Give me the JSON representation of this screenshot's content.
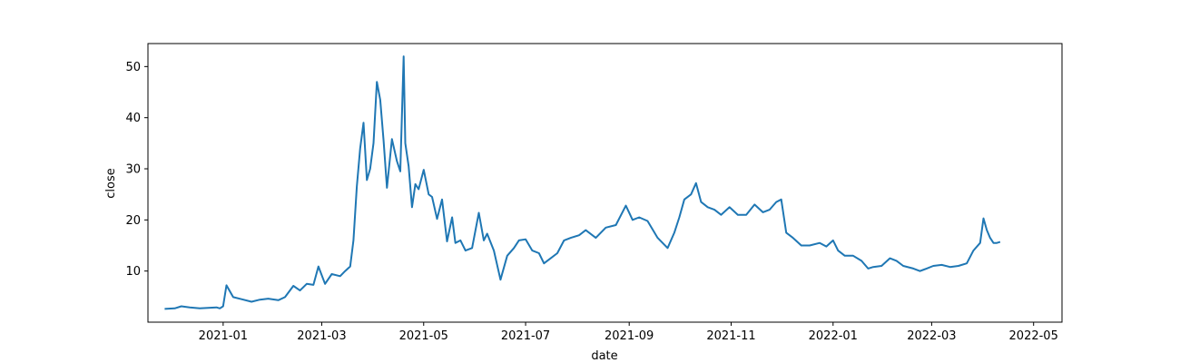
{
  "chart_data": {
    "type": "line",
    "title": "",
    "xlabel": "date",
    "ylabel": "close",
    "x_ticks": [
      "2021-01",
      "2021-03",
      "2021-05",
      "2021-07",
      "2021-09",
      "2021-11",
      "2022-01",
      "2022-03",
      "2022-05"
    ],
    "y_ticks": [
      10,
      20,
      30,
      40,
      50
    ],
    "xlim": [
      "2020-11-17",
      "2022-05-18"
    ],
    "ylim": [
      0,
      54.5
    ],
    "grid": false,
    "line_color": "#1f77b4",
    "series": [
      {
        "x": [
          "2020-11-27",
          "2020-12-03",
          "2020-12-07",
          "2020-12-12",
          "2020-12-18",
          "2020-12-23",
          "2020-12-28",
          "2020-12-30",
          "2021-01-01",
          "2021-01-03",
          "2021-01-07",
          "2021-01-12",
          "2021-01-18",
          "2021-01-23",
          "2021-01-28",
          "2021-02-03",
          "2021-02-07",
          "2021-02-12",
          "2021-02-16",
          "2021-02-20",
          "2021-02-24",
          "2021-02-27",
          "2021-03-03",
          "2021-03-07",
          "2021-03-12",
          "2021-03-15",
          "2021-03-18",
          "2021-03-20",
          "2021-03-22",
          "2021-03-24",
          "2021-03-26",
          "2021-03-28",
          "2021-03-30",
          "2021-04-01",
          "2021-04-03",
          "2021-04-05",
          "2021-04-07",
          "2021-04-09",
          "2021-04-12",
          "2021-04-15",
          "2021-04-17",
          "2021-04-19",
          "2021-04-20",
          "2021-04-22",
          "2021-04-24",
          "2021-04-26",
          "2021-04-28",
          "2021-05-01",
          "2021-05-04",
          "2021-05-06",
          "2021-05-09",
          "2021-05-12",
          "2021-05-15",
          "2021-05-18",
          "2021-05-20",
          "2021-05-23",
          "2021-05-26",
          "2021-05-30",
          "2021-06-03",
          "2021-06-06",
          "2021-06-08",
          "2021-06-12",
          "2021-06-16",
          "2021-06-20",
          "2021-06-24",
          "2021-06-27",
          "2021-07-01",
          "2021-07-05",
          "2021-07-09",
          "2021-07-12",
          "2021-07-16",
          "2021-07-20",
          "2021-07-24",
          "2021-07-28",
          "2021-08-02",
          "2021-08-06",
          "2021-08-12",
          "2021-08-18",
          "2021-08-24",
          "2021-08-30",
          "2021-09-03",
          "2021-09-07",
          "2021-09-12",
          "2021-09-18",
          "2021-09-24",
          "2021-09-28",
          "2021-10-01",
          "2021-10-04",
          "2021-10-08",
          "2021-10-11",
          "2021-10-14",
          "2021-10-18",
          "2021-10-22",
          "2021-10-26",
          "2021-10-31",
          "2021-11-05",
          "2021-11-10",
          "2021-11-15",
          "2021-11-20",
          "2021-11-24",
          "2021-11-28",
          "2021-12-01",
          "2021-12-04",
          "2021-12-08",
          "2021-12-13",
          "2021-12-18",
          "2021-12-24",
          "2021-12-28",
          "2022-01-01",
          "2022-01-04",
          "2022-01-08",
          "2022-01-13",
          "2022-01-18",
          "2022-01-22",
          "2022-01-25",
          "2022-01-30",
          "2022-02-04",
          "2022-02-08",
          "2022-02-12",
          "2022-02-18",
          "2022-02-22",
          "2022-02-26",
          "2022-03-02",
          "2022-03-07",
          "2022-03-12",
          "2022-03-17",
          "2022-03-22",
          "2022-03-26",
          "2022-03-30",
          "2022-04-01",
          "2022-04-03",
          "2022-04-05",
          "2022-04-07",
          "2022-04-09",
          "2022-04-11"
        ],
        "values": [
          2.6,
          2.7,
          3.1,
          2.9,
          2.7,
          2.8,
          2.9,
          2.7,
          3.1,
          7.2,
          4.9,
          4.5,
          4.0,
          4.4,
          4.6,
          4.3,
          4.9,
          7.1,
          6.2,
          7.5,
          7.3,
          10.9,
          7.5,
          9.4,
          9.0,
          10.0,
          10.9,
          16.0,
          26.5,
          34.0,
          39.0,
          27.8,
          30.0,
          35.0,
          47.0,
          43.5,
          35.5,
          26.3,
          35.8,
          31.5,
          29.5,
          52.0,
          35.0,
          30.5,
          22.5,
          27.0,
          26.0,
          29.8,
          25.0,
          24.5,
          20.2,
          24.0,
          15.8,
          20.5,
          15.5,
          16.0,
          14.0,
          14.5,
          21.4,
          16.0,
          17.3,
          14.0,
          8.3,
          13.0,
          14.5,
          16.0,
          16.2,
          14.0,
          13.5,
          11.5,
          12.5,
          13.5,
          16.0,
          16.5,
          17.0,
          18.0,
          16.5,
          18.5,
          19.0,
          22.8,
          20.0,
          20.5,
          19.8,
          16.5,
          14.5,
          17.5,
          20.5,
          24.0,
          25.0,
          27.2,
          23.5,
          22.5,
          22.0,
          21.0,
          22.5,
          21.0,
          21.0,
          23.0,
          21.5,
          22.0,
          23.5,
          24.0,
          17.5,
          16.5,
          15.0,
          15.0,
          15.5,
          14.8,
          16.0,
          14.0,
          13.0,
          13.0,
          12.0,
          10.5,
          10.8,
          11.0,
          12.5,
          12.0,
          11.0,
          10.5,
          10.0,
          10.5,
          11.0,
          11.2,
          10.8,
          11.0,
          11.5,
          14.0,
          15.5,
          20.3,
          18.0,
          16.5,
          15.5,
          15.5,
          15.7
        ]
      }
    ]
  }
}
